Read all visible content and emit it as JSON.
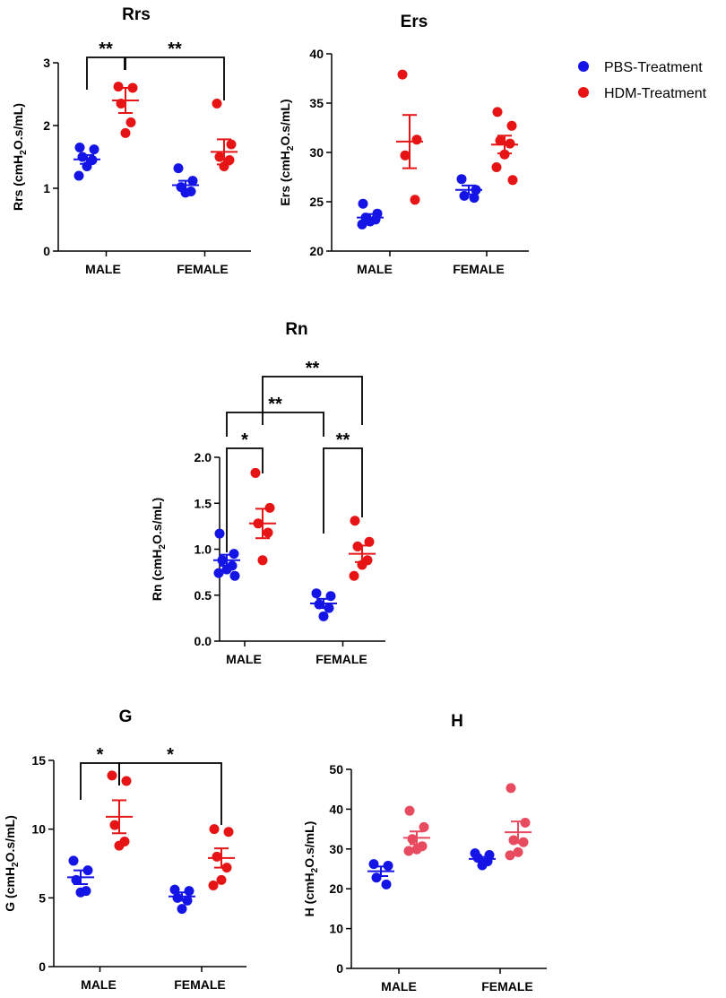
{
  "legend": [
    {
      "label": "PBS-Treatment",
      "color": "#1414e6"
    },
    {
      "label": "HDM-Treatment",
      "color": "#e61414"
    }
  ],
  "chart_data": [
    {
      "id": "rrs",
      "type": "scatter",
      "title": "Rrs",
      "ylabel": "Rrs (cmH2O.s/mL)",
      "ylim": [
        0,
        3
      ],
      "yticks": [
        0,
        1,
        2,
        3
      ],
      "ytick_labels": [
        "0",
        "1",
        "2",
        "3"
      ],
      "categories": [
        "MALE",
        "FEMALE"
      ],
      "series": [
        {
          "name": "PBS-Treatment",
          "color": "#1414e6",
          "points": [
            [
              1.65,
              1.62,
              1.5,
              1.45,
              1.35,
              1.2
            ],
            [
              1.32,
              1.12,
              1.02,
              0.95,
              0.93
            ]
          ],
          "mean": [
            1.46,
            1.05
          ],
          "sem": [
            0.07,
            0.07
          ]
        },
        {
          "name": "HDM-Treatment",
          "color": "#e61414",
          "points": [
            [
              2.62,
              2.6,
              2.35,
              2.05,
              1.88
            ],
            [
              2.35,
              1.7,
              1.5,
              1.45,
              1.35
            ]
          ],
          "mean": [
            2.4,
            1.58
          ],
          "sem": [
            0.2,
            0.2
          ]
        }
      ],
      "annotations": [
        {
          "text": "**"
        },
        {
          "text": "**"
        }
      ]
    },
    {
      "id": "ers",
      "type": "scatter",
      "title": "Ers",
      "ylabel": "Ers (cmH2O.s/mL)",
      "ylim": [
        20,
        40
      ],
      "yticks": [
        20,
        25,
        30,
        35,
        40
      ],
      "ytick_labels": [
        "20",
        "25",
        "30",
        "35",
        "40"
      ],
      "categories": [
        "MALE",
        "FEMALE"
      ],
      "series": [
        {
          "name": "PBS-Treatment",
          "color": "#1414e6",
          "points": [
            [
              24.8,
              23.8,
              23.4,
              23.2,
              23.0,
              22.7
            ],
            [
              27.3,
              26.2,
              25.6,
              25.4
            ]
          ],
          "mean": [
            23.4,
            26.2
          ],
          "sem": [
            0.35,
            0.45
          ]
        },
        {
          "name": "HDM-Treatment",
          "color": "#e61414",
          "points": [
            [
              37.9,
              31.3,
              29.7,
              25.2
            ],
            [
              34.1,
              32.7,
              31.2,
              30.9,
              29.8,
              28.5,
              27.2
            ]
          ],
          "mean": [
            31.1,
            30.8
          ],
          "sem": [
            2.7,
            0.9
          ]
        }
      ],
      "annotations": []
    },
    {
      "id": "rn",
      "type": "scatter",
      "title": "Rn",
      "ylabel": "Rn (cmH2O.s/mL)",
      "ylim": [
        0,
        2
      ],
      "yticks": [
        0,
        0.5,
        1,
        1.5,
        2
      ],
      "ytick_labels": [
        "0.0",
        "0.5",
        "1.0",
        "1.5",
        "2.0"
      ],
      "categories": [
        "MALE",
        "FEMALE"
      ],
      "series": [
        {
          "name": "PBS-Treatment",
          "color": "#1414e6",
          "points": [
            [
              1.17,
              0.95,
              0.88,
              0.82,
              0.78,
              0.74,
              0.71
            ],
            [
              0.52,
              0.49,
              0.4,
              0.36,
              0.27
            ]
          ],
          "mean": [
            0.88,
            0.41
          ],
          "sem": [
            0.06,
            0.05
          ]
        },
        {
          "name": "HDM-Treatment",
          "color": "#e61414",
          "points": [
            [
              1.83,
              1.45,
              1.28,
              1.18,
              0.88
            ],
            [
              1.31,
              1.08,
              1.03,
              0.88,
              0.83,
              0.71
            ]
          ],
          "mean": [
            1.28,
            0.95
          ],
          "sem": [
            0.16,
            0.09
          ]
        }
      ],
      "annotations": [
        {
          "text": "*"
        },
        {
          "text": "**"
        },
        {
          "text": "**"
        },
        {
          "text": "**"
        }
      ]
    },
    {
      "id": "g",
      "type": "scatter",
      "title": "G",
      "ylabel": "G (cmH2O.s/mL)",
      "ylim": [
        0,
        15
      ],
      "yticks": [
        0,
        5,
        10,
        15
      ],
      "ytick_labels": [
        "0",
        "5",
        "10",
        "15"
      ],
      "categories": [
        "MALE",
        "FEMALE"
      ],
      "series": [
        {
          "name": "PBS-Treatment",
          "color": "#1414e6",
          "points": [
            [
              7.7,
              7.0,
              6.3,
              5.5,
              5.4
            ],
            [
              5.6,
              5.5,
              5.0,
              4.8,
              4.2
            ]
          ],
          "mean": [
            6.5,
            5.1
          ],
          "sem": [
            0.5,
            0.3
          ]
        },
        {
          "name": "HDM-Treatment",
          "color": "#e61414",
          "points": [
            [
              13.9,
              13.5,
              10.3,
              9.1,
              8.8
            ],
            [
              10.0,
              9.8,
              8.0,
              7.2,
              6.3,
              5.9
            ]
          ],
          "mean": [
            10.9,
            7.9
          ],
          "sem": [
            1.2,
            0.7
          ]
        }
      ],
      "annotations": [
        {
          "text": "*"
        },
        {
          "text": "*"
        }
      ]
    },
    {
      "id": "h",
      "type": "scatter",
      "title": "H",
      "ylabel": "H (cmH2O.s/mL)",
      "ylim": [
        0,
        50
      ],
      "yticks": [
        0,
        10,
        20,
        30,
        40,
        50
      ],
      "ytick_labels": [
        "0",
        "10",
        "20",
        "30",
        "40",
        "50"
      ],
      "categories": [
        "MALE",
        "FEMALE"
      ],
      "series": [
        {
          "name": "PBS-Treatment",
          "color": "#1414e6",
          "points": [
            [
              26.2,
              25.8,
              22.8,
              21.1
            ],
            [
              28.9,
              28.5,
              27.8,
              26.9,
              25.9
            ]
          ],
          "mean": [
            24.4,
            27.5
          ],
          "sem": [
            1.2,
            0.5
          ]
        },
        {
          "name": "HDM-Treatment",
          "color": "#e84a5f",
          "points": [
            [
              39.6,
              35.5,
              32.5,
              30.7,
              29.9,
              29.5
            ],
            [
              45.3,
              36.6,
              32.2,
              31.7,
              29.2,
              28.4
            ]
          ],
          "mean": [
            32.8,
            34.2
          ],
          "sem": [
            1.6,
            2.7
          ]
        }
      ],
      "annotations": []
    }
  ]
}
